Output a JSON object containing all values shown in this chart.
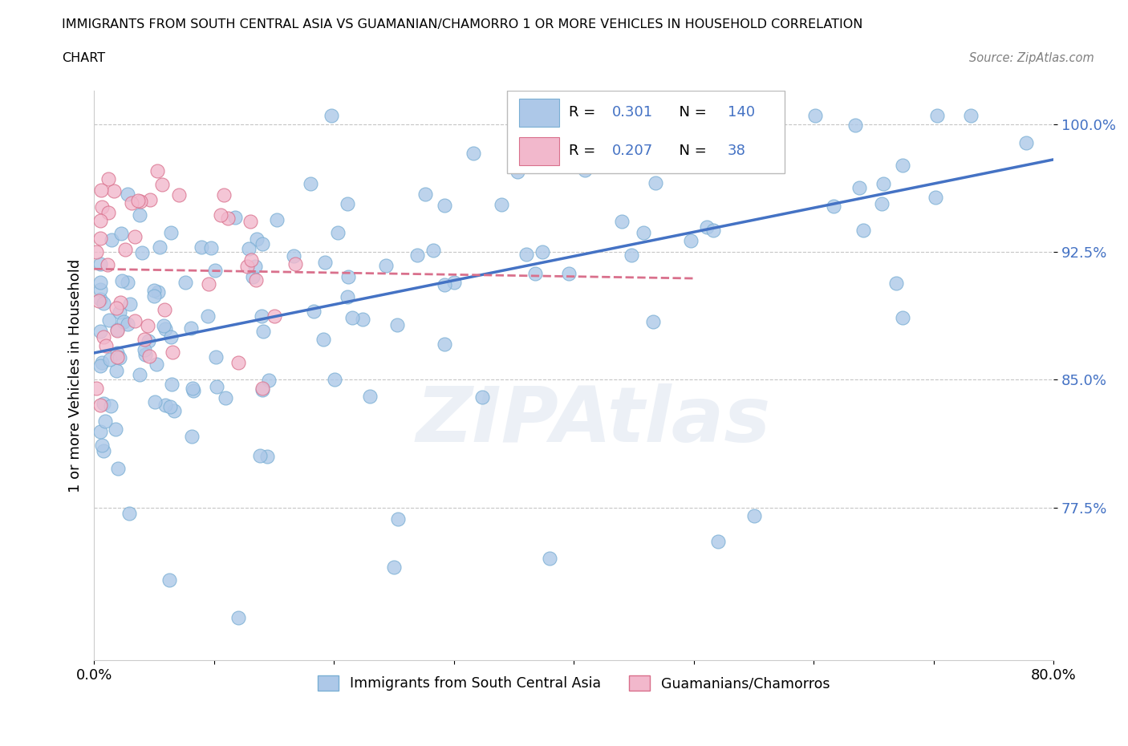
{
  "title_line1": "IMMIGRANTS FROM SOUTH CENTRAL ASIA VS GUAMANIAN/CHAMORRO 1 OR MORE VEHICLES IN HOUSEHOLD CORRELATION",
  "title_line2": "CHART",
  "source_text": "Source: ZipAtlas.com",
  "ylabel": "1 or more Vehicles in Household",
  "xlim": [
    0.0,
    0.8
  ],
  "ylim": [
    0.685,
    1.02
  ],
  "yticks": [
    0.775,
    0.85,
    0.925,
    1.0
  ],
  "ytick_labels": [
    "77.5%",
    "85.0%",
    "92.5%",
    "100.0%"
  ],
  "xticks": [
    0.0,
    0.1,
    0.2,
    0.3,
    0.4,
    0.5,
    0.6,
    0.7,
    0.8
  ],
  "xtick_labels": [
    "0.0%",
    "",
    "",
    "",
    "",
    "",
    "",
    "",
    "80.0%"
  ],
  "blue_color": "#adc8e8",
  "blue_edge": "#7aafd4",
  "pink_color": "#f2b8cc",
  "pink_edge": "#d9708c",
  "trend_blue": "#4472c4",
  "trend_pink": "#d9708c",
  "R_blue": 0.301,
  "N_blue": 140,
  "R_pink": 0.207,
  "N_pink": 38,
  "legend_label_blue": "Immigrants from South Central Asia",
  "legend_label_pink": "Guamanians/Chamorros",
  "watermark": "ZIPAtlas"
}
